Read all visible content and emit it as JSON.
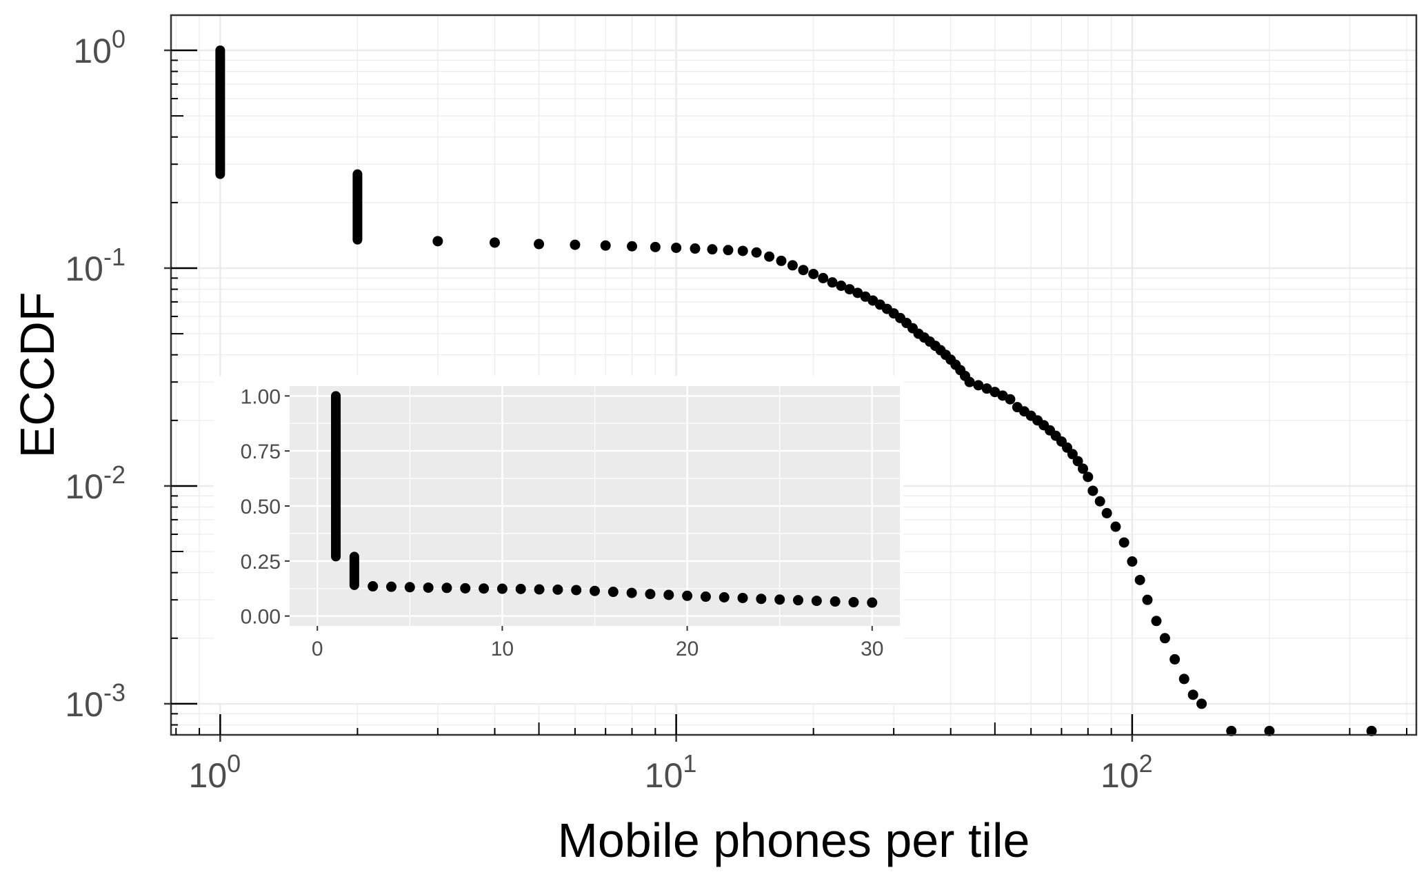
{
  "chart_data": [
    {
      "type": "scatter",
      "xlabel": "Mobile phones per tile",
      "ylabel": "ECCDF",
      "x_scale": "log10",
      "y_scale": "log10",
      "xlim": [
        0.78,
        420
      ],
      "ylim": [
        0.00072,
        1.45
      ],
      "x_ticks": [
        {
          "base": "10",
          "exp": "0"
        },
        {
          "base": "10",
          "exp": "1"
        },
        {
          "base": "10",
          "exp": "2"
        }
      ],
      "y_ticks": [
        {
          "base": "10",
          "exp": "0"
        },
        {
          "base": "10",
          "exp": "-1"
        },
        {
          "base": "10",
          "exp": "-2"
        },
        {
          "base": "10",
          "exp": "-3"
        }
      ],
      "grid": true,
      "legend": "none",
      "colors": {
        "points": "#000000",
        "panel": "#ffffff",
        "grid": "#ebebeb",
        "frame": "#333333"
      },
      "points": [
        {
          "x": 1,
          "y_range": [
            0.27,
            1.0
          ]
        },
        {
          "x": 2,
          "y_range": [
            0.135,
            0.27
          ]
        },
        {
          "x": 3,
          "y": 0.133
        },
        {
          "x": 4,
          "y": 0.131
        },
        {
          "x": 5,
          "y": 0.129
        },
        {
          "x": 6,
          "y": 0.128
        },
        {
          "x": 7,
          "y": 0.127
        },
        {
          "x": 8,
          "y": 0.126
        },
        {
          "x": 9,
          "y": 0.125
        },
        {
          "x": 10,
          "y": 0.124
        },
        {
          "x": 11,
          "y": 0.123
        },
        {
          "x": 12,
          "y": 0.122
        },
        {
          "x": 13,
          "y": 0.121
        },
        {
          "x": 14,
          "y": 0.12
        },
        {
          "x": 15,
          "y": 0.118
        },
        {
          "x": 16,
          "y": 0.113
        },
        {
          "x": 17,
          "y": 0.108
        },
        {
          "x": 18,
          "y": 0.103
        },
        {
          "x": 19,
          "y": 0.098
        },
        {
          "x": 20,
          "y": 0.094
        },
        {
          "x": 21,
          "y": 0.09
        },
        {
          "x": 22,
          "y": 0.086
        },
        {
          "x": 23,
          "y": 0.083
        },
        {
          "x": 24,
          "y": 0.08
        },
        {
          "x": 25,
          "y": 0.077
        },
        {
          "x": 26,
          "y": 0.074
        },
        {
          "x": 27,
          "y": 0.071
        },
        {
          "x": 28,
          "y": 0.068
        },
        {
          "x": 29,
          "y": 0.065
        },
        {
          "x": 30,
          "y": 0.062
        },
        {
          "x": 31,
          "y": 0.059
        },
        {
          "x": 32,
          "y": 0.056
        },
        {
          "x": 33,
          "y": 0.053
        },
        {
          "x": 34,
          "y": 0.05
        },
        {
          "x": 35,
          "y": 0.048
        },
        {
          "x": 36,
          "y": 0.046
        },
        {
          "x": 37,
          "y": 0.044
        },
        {
          "x": 38,
          "y": 0.042
        },
        {
          "x": 39,
          "y": 0.04
        },
        {
          "x": 40,
          "y": 0.038
        },
        {
          "x": 41,
          "y": 0.036
        },
        {
          "x": 42,
          "y": 0.034
        },
        {
          "x": 43,
          "y": 0.032
        },
        {
          "x": 44,
          "y": 0.03
        },
        {
          "x": 46,
          "y": 0.029
        },
        {
          "x": 48,
          "y": 0.028
        },
        {
          "x": 50,
          "y": 0.027
        },
        {
          "x": 52,
          "y": 0.026
        },
        {
          "x": 54,
          "y": 0.025
        },
        {
          "x": 56,
          "y": 0.023
        },
        {
          "x": 58,
          "y": 0.022
        },
        {
          "x": 60,
          "y": 0.021
        },
        {
          "x": 62,
          "y": 0.02
        },
        {
          "x": 64,
          "y": 0.019
        },
        {
          "x": 66,
          "y": 0.018
        },
        {
          "x": 68,
          "y": 0.017
        },
        {
          "x": 70,
          "y": 0.016
        },
        {
          "x": 72,
          "y": 0.015
        },
        {
          "x": 74,
          "y": 0.014
        },
        {
          "x": 76,
          "y": 0.013
        },
        {
          "x": 78,
          "y": 0.012
        },
        {
          "x": 80,
          "y": 0.011
        },
        {
          "x": 82,
          "y": 0.0095
        },
        {
          "x": 85,
          "y": 0.0085
        },
        {
          "x": 88,
          "y": 0.0075
        },
        {
          "x": 92,
          "y": 0.0065
        },
        {
          "x": 96,
          "y": 0.0055
        },
        {
          "x": 100,
          "y": 0.0045
        },
        {
          "x": 104,
          "y": 0.0037
        },
        {
          "x": 108,
          "y": 0.003
        },
        {
          "x": 113,
          "y": 0.0024
        },
        {
          "x": 118,
          "y": 0.002
        },
        {
          "x": 124,
          "y": 0.0016
        },
        {
          "x": 130,
          "y": 0.0013
        },
        {
          "x": 136,
          "y": 0.0011
        },
        {
          "x": 142,
          "y": 0.001
        },
        {
          "x": 165,
          "y": 0.00075
        },
        {
          "x": 200,
          "y": 0.00075
        },
        {
          "x": 335,
          "y": 0.00075
        }
      ]
    },
    {
      "type": "scatter",
      "xlim": [
        -1.5,
        31.5
      ],
      "ylim": [
        -0.045,
        1.045
      ],
      "x_ticks": [
        0,
        10,
        20,
        30
      ],
      "y_ticks": [
        0.0,
        0.25,
        0.5,
        0.75,
        1.0
      ],
      "x_tick_labels": [
        "0",
        "10",
        "20",
        "30"
      ],
      "y_tick_labels": [
        "0.00",
        "0.25",
        "0.50",
        "0.75",
        "1.00"
      ],
      "grid": true,
      "legend": "none",
      "colors": {
        "points": "#000000",
        "panel": "#ebebeb",
        "grid": "#ffffff"
      },
      "points": [
        {
          "x": 1,
          "y_range": [
            0.27,
            1.0
          ]
        },
        {
          "x": 2,
          "y_range": [
            0.14,
            0.27
          ]
        },
        {
          "x": 3,
          "y": 0.135
        },
        {
          "x": 4,
          "y": 0.133
        },
        {
          "x": 5,
          "y": 0.131
        },
        {
          "x": 6,
          "y": 0.129
        },
        {
          "x": 7,
          "y": 0.128
        },
        {
          "x": 8,
          "y": 0.126
        },
        {
          "x": 9,
          "y": 0.125
        },
        {
          "x": 10,
          "y": 0.124
        },
        {
          "x": 11,
          "y": 0.123
        },
        {
          "x": 12,
          "y": 0.121
        },
        {
          "x": 13,
          "y": 0.12
        },
        {
          "x": 14,
          "y": 0.118
        },
        {
          "x": 15,
          "y": 0.114
        },
        {
          "x": 16,
          "y": 0.11
        },
        {
          "x": 17,
          "y": 0.105
        },
        {
          "x": 18,
          "y": 0.1
        },
        {
          "x": 19,
          "y": 0.096
        },
        {
          "x": 20,
          "y": 0.092
        },
        {
          "x": 21,
          "y": 0.088
        },
        {
          "x": 22,
          "y": 0.085
        },
        {
          "x": 23,
          "y": 0.082
        },
        {
          "x": 24,
          "y": 0.078
        },
        {
          "x": 25,
          "y": 0.075
        },
        {
          "x": 26,
          "y": 0.072
        },
        {
          "x": 27,
          "y": 0.069
        },
        {
          "x": 28,
          "y": 0.066
        },
        {
          "x": 29,
          "y": 0.063
        },
        {
          "x": 30,
          "y": 0.061
        }
      ]
    }
  ]
}
